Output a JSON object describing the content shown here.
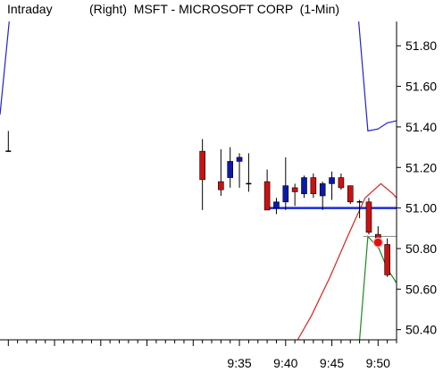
{
  "header": {
    "left": "Intraday",
    "right": "(Right)  MSFT - MICROSOFT CORP  (1-Min)"
  },
  "colors": {
    "up_candle": "#0a1aa8",
    "down_candle": "#cc1111",
    "upper_band": "#2222cc",
    "red_line": "#e02020",
    "green_line": "#1a8a1a",
    "support_line": "#1a2bd6",
    "ref_line": "#888888",
    "marker": "#e01010"
  },
  "chart_data": {
    "type": "candlestick",
    "title": "MSFT - MICROSOFT CORP (1-Min)",
    "x_ticks": [
      "9:35",
      "9:40",
      "9:45",
      "9:50"
    ],
    "y_ticks": [
      "51.80",
      "51.60",
      "51.40",
      "51.20",
      "51.00",
      "50.80",
      "50.60",
      "50.40"
    ],
    "y_tick_values": [
      51.8,
      51.6,
      51.4,
      51.2,
      51.0,
      50.8,
      50.6,
      50.4
    ],
    "ylim": [
      50.35,
      51.92
    ],
    "xlim": [
      9.1,
      52.0
    ],
    "candles": [
      {
        "t": 10,
        "o": 51.28,
        "h": 51.38,
        "l": 51.28,
        "c": 51.28,
        "dir": "flat"
      },
      {
        "t": 31,
        "o": 51.28,
        "h": 51.34,
        "l": 50.99,
        "c": 51.14,
        "dir": "down"
      },
      {
        "t": 33,
        "o": 51.13,
        "h": 51.29,
        "l": 51.06,
        "c": 51.09,
        "dir": "down"
      },
      {
        "t": 34,
        "o": 51.15,
        "h": 51.3,
        "l": 51.1,
        "c": 51.23,
        "dir": "up"
      },
      {
        "t": 35,
        "o": 51.23,
        "h": 51.27,
        "l": 51.1,
        "c": 51.25,
        "dir": "up"
      },
      {
        "t": 36,
        "o": 51.12,
        "h": 51.27,
        "l": 51.08,
        "c": 51.12,
        "dir": "flat"
      },
      {
        "t": 38,
        "o": 51.13,
        "h": 51.19,
        "l": 50.99,
        "c": 50.99,
        "dir": "down"
      },
      {
        "t": 39,
        "o": 51.0,
        "h": 51.05,
        "l": 50.97,
        "c": 51.03,
        "dir": "up"
      },
      {
        "t": 40,
        "o": 51.03,
        "h": 51.25,
        "l": 50.99,
        "c": 51.11,
        "dir": "up"
      },
      {
        "t": 41,
        "o": 51.1,
        "h": 51.12,
        "l": 51.01,
        "c": 51.08,
        "dir": "down"
      },
      {
        "t": 42,
        "o": 51.07,
        "h": 51.16,
        "l": 51.05,
        "c": 51.15,
        "dir": "up"
      },
      {
        "t": 43,
        "o": 51.15,
        "h": 51.17,
        "l": 51.05,
        "c": 51.07,
        "dir": "down"
      },
      {
        "t": 44,
        "o": 51.06,
        "h": 51.13,
        "l": 50.99,
        "c": 51.12,
        "dir": "up"
      },
      {
        "t": 45,
        "o": 51.12,
        "h": 51.18,
        "l": 51.04,
        "c": 51.15,
        "dir": "up"
      },
      {
        "t": 46,
        "o": 51.15,
        "h": 51.17,
        "l": 51.09,
        "c": 51.1,
        "dir": "down"
      },
      {
        "t": 47,
        "o": 51.11,
        "h": 51.11,
        "l": 51.02,
        "c": 51.03,
        "dir": "down"
      },
      {
        "t": 48,
        "o": 51.03,
        "h": 51.04,
        "l": 50.95,
        "c": 51.03,
        "dir": "flat"
      },
      {
        "t": 49,
        "o": 51.03,
        "h": 51.05,
        "l": 50.87,
        "c": 50.88,
        "dir": "down"
      },
      {
        "t": 50,
        "o": 50.87,
        "h": 50.91,
        "l": 50.81,
        "c": 50.82,
        "dir": "down"
      },
      {
        "t": 51,
        "o": 50.82,
        "h": 50.85,
        "l": 50.66,
        "c": 50.67,
        "dir": "down"
      }
    ],
    "series": [
      {
        "type": "line",
        "color": "upper_band",
        "points": [
          [
            9.1,
            51.46
          ],
          [
            10.1,
            51.92
          ]
        ]
      },
      {
        "type": "line",
        "color": "upper_band",
        "points": [
          [
            47.9,
            51.92
          ],
          [
            48.9,
            51.38
          ],
          [
            50.0,
            51.39
          ],
          [
            51.0,
            51.42
          ],
          [
            52.0,
            51.43
          ]
        ]
      },
      {
        "type": "line",
        "color": "red_line",
        "points": [
          [
            41.3,
            50.35
          ],
          [
            42.8,
            50.47
          ],
          [
            44.8,
            50.66
          ],
          [
            46.8,
            50.87
          ],
          [
            48.6,
            51.05
          ],
          [
            50.3,
            51.12
          ],
          [
            51.6,
            51.07
          ],
          [
            52.0,
            51.05
          ]
        ]
      },
      {
        "type": "line",
        "color": "green_line",
        "points": [
          [
            48.0,
            50.35
          ],
          [
            48.9,
            50.86
          ],
          [
            50.1,
            50.8
          ],
          [
            51.0,
            50.7
          ],
          [
            52.0,
            50.63
          ]
        ]
      }
    ],
    "hlines": [
      {
        "y": 51.0,
        "x_from": 38,
        "color": "support_line",
        "width": 2.5
      },
      {
        "y": 50.86,
        "x_from": 48.4,
        "color": "ref_line",
        "width": 1
      }
    ],
    "marker": {
      "t": 50,
      "y": 50.83
    }
  }
}
